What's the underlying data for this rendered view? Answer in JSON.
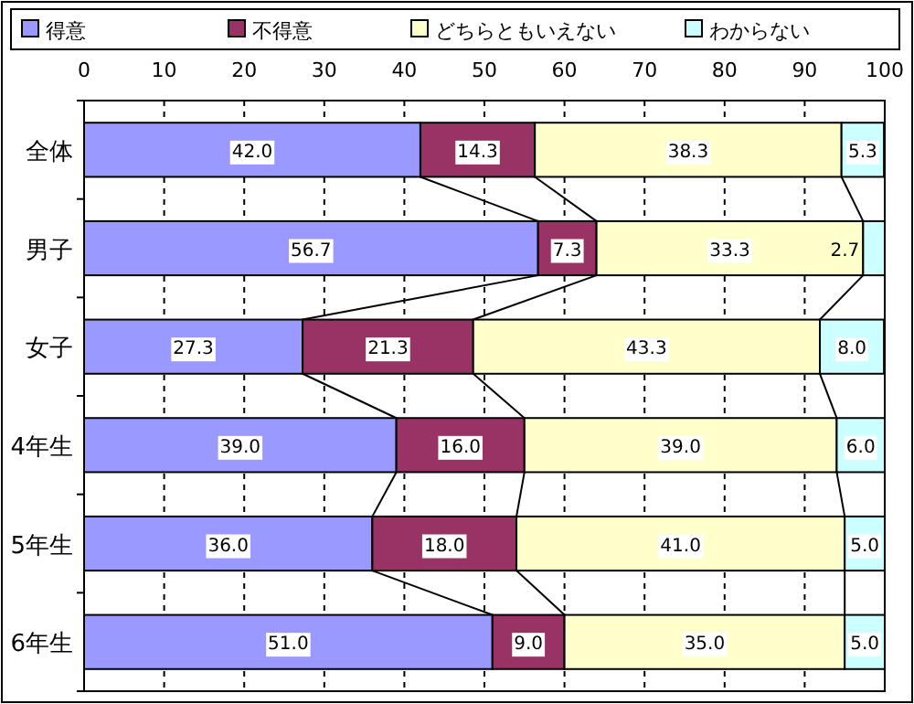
{
  "chart_data": {
    "type": "bar",
    "orientation": "horizontal",
    "stacked": true,
    "categories": [
      "全体",
      "男子",
      "女子",
      "4年生",
      "5年生",
      "6年生"
    ],
    "series": [
      {
        "name": "得意",
        "color": "#9999ff",
        "values": [
          42.0,
          56.7,
          27.3,
          39.0,
          36.0,
          51.0
        ],
        "value_labels": [
          "42.0",
          "56.7",
          "27.3",
          "39.0",
          "36.0",
          "51.0"
        ]
      },
      {
        "name": "不得意",
        "color": "#993366",
        "values": [
          14.3,
          7.3,
          21.3,
          16.0,
          18.0,
          9.0
        ],
        "value_labels": [
          "14.3",
          "7.3",
          "21.3",
          "16.0",
          "18.0",
          "9.0"
        ]
      },
      {
        "name": "どちらともいえない",
        "color": "#ffffcc",
        "values": [
          38.3,
          33.3,
          43.3,
          39.0,
          41.0,
          35.0
        ],
        "value_labels": [
          "38.3",
          "33.3",
          "43.3",
          "39.0",
          "41.0",
          "35.0"
        ]
      },
      {
        "name": "わからない",
        "color": "#ccffff",
        "values": [
          5.3,
          2.7,
          8.0,
          6.0,
          5.0,
          5.0
        ],
        "value_labels": [
          "5.3",
          "2.7",
          "8.0",
          "6.0",
          "5.0",
          "5.0"
        ]
      }
    ],
    "xlim": [
      0,
      100
    ],
    "xticks": [
      0,
      10,
      20,
      30,
      40,
      50,
      60,
      70,
      80,
      90,
      100
    ],
    "grid": "x",
    "legend": "top"
  }
}
